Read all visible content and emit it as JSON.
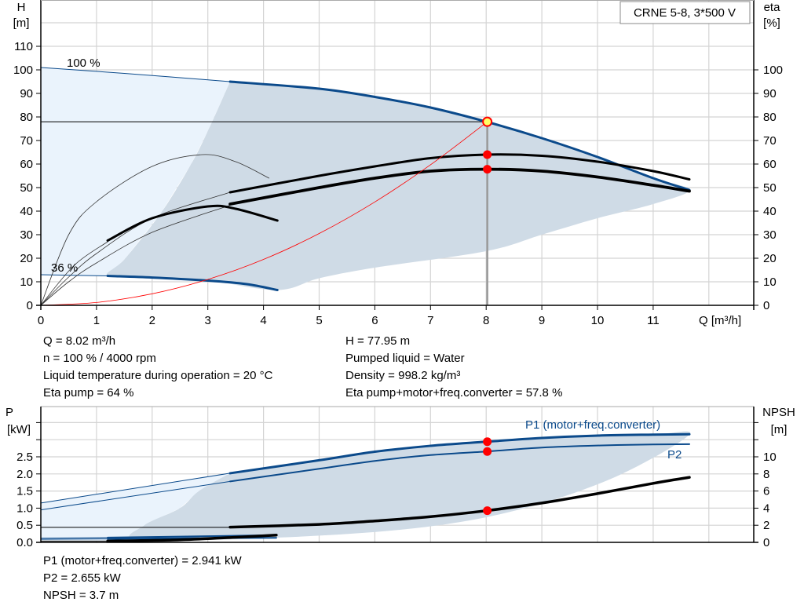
{
  "colors": {
    "curve_blue": "#0b4a8b",
    "range_grey": "#cfdbe6",
    "extended_light": "#eaf3fc",
    "duty_point": "#ff0000",
    "duty_fill": "#ffff66",
    "system_curve": "#ff0000"
  },
  "legend_box": "CRNE 5-8, 3*500 V",
  "info_top": {
    "left": [
      "Q = 8.02 m³/h",
      "n = 100 % / 4000 rpm",
      "Liquid temperature during operation = 20 °C",
      "Eta pump = 64 %"
    ],
    "right": [
      "H = 77.95 m",
      "Pumped liquid = Water",
      "Density = 998.2 kg/m³",
      "Eta pump+motor+freq.converter = 57.8 %"
    ]
  },
  "info_bottom": [
    "P1 (motor+freq.converter) = 2.941 kW",
    "P2 = 2.655 kW",
    "NPSH = 3.7 m"
  ],
  "chart_data": [
    {
      "type": "line",
      "xlabel": "Q [m³/h]",
      "ylabel": [
        "H",
        "[m]"
      ],
      "y2label": [
        "eta",
        "[%]"
      ],
      "xlim": [
        0,
        12.8
      ],
      "ylim": [
        0,
        129.7
      ],
      "y2lim": [
        0,
        129.7
      ],
      "xticks": [
        "0",
        "1",
        "2",
        "3",
        "4",
        "5",
        "6",
        "7",
        "8",
        "9",
        "10",
        "11"
      ],
      "yticks": [
        "0",
        "10",
        "20",
        "30",
        "40",
        "50",
        "60",
        "70",
        "80",
        "90",
        "100",
        "110"
      ],
      "y2ticks": [
        "0",
        "10",
        "20",
        "30",
        "40",
        "50",
        "60",
        "70",
        "80",
        "90",
        "100"
      ],
      "grid": true,
      "speed_labels": [
        {
          "text": "100 %",
          "q": 0.5,
          "h": 101
        },
        {
          "text": "36 %",
          "q": 0.2,
          "h": 14
        }
      ],
      "operating_range_region": [
        [
          3.4,
          95
        ],
        [
          5,
          92
        ],
        [
          6,
          88.5
        ],
        [
          7,
          84
        ],
        [
          8,
          78
        ],
        [
          9,
          71
        ],
        [
          10,
          63
        ],
        [
          11,
          54
        ],
        [
          11.65,
          49
        ],
        [
          11,
          43
        ],
        [
          10,
          37
        ],
        [
          9,
          30
        ],
        [
          8,
          23
        ],
        [
          6,
          16
        ],
        [
          5,
          11.5
        ],
        [
          4.25,
          6.5
        ],
        [
          3,
          10.5
        ],
        [
          2,
          11.8
        ],
        [
          1.2,
          12.5
        ],
        [
          1.52,
          20
        ],
        [
          2.18,
          40
        ],
        [
          2.7,
          60
        ],
        [
          3,
          74
        ],
        [
          3.4,
          95
        ]
      ],
      "extended_region": [
        [
          0,
          101
        ],
        [
          3.4,
          95
        ],
        [
          3,
          74
        ],
        [
          2.7,
          60
        ],
        [
          2.18,
          40
        ],
        [
          1.52,
          20
        ],
        [
          1.2,
          12.5
        ],
        [
          0,
          13
        ]
      ],
      "series": [
        {
          "axis": "H",
          "label": "100 %",
          "segments": [
            {
              "part": "extended",
              "points": [
                [
                  0,
                  101
                ],
                [
                  1.5,
                  98.5
                ],
                [
                  3.4,
                  95
                ]
              ]
            },
            {
              "part": "operating",
              "points": [
                [
                  3.4,
                  95
                ],
                [
                  5,
                  92
                ],
                [
                  6,
                  88.5
                ],
                [
                  7,
                  84
                ],
                [
                  8,
                  78
                ],
                [
                  9,
                  71
                ],
                [
                  10,
                  63
                ],
                [
                  11,
                  54
                ],
                [
                  11.65,
                  49
                ]
              ]
            }
          ]
        },
        {
          "axis": "H",
          "label": "36 %",
          "segments": [
            {
              "part": "extended",
              "points": [
                [
                  0,
                  13
                ],
                [
                  1.2,
                  12.5
                ]
              ]
            },
            {
              "part": "operating",
              "points": [
                [
                  1.2,
                  12.5
                ],
                [
                  2,
                  11.8
                ],
                [
                  3,
                  10.5
                ],
                [
                  3.7,
                  9
                ],
                [
                  4.25,
                  6.5
                ]
              ]
            }
          ]
        },
        {
          "axis": "eta",
          "segments": [
            {
              "part": "extended",
              "points": [
                [
                  0,
                  0
                ],
                [
                  0.5,
                  12
                ],
                [
                  1,
                  22
                ],
                [
                  2,
                  37
                ],
                [
                  3.4,
                  48
                ]
              ]
            },
            {
              "part": "operating",
              "points": [
                [
                  3.4,
                  48
                ],
                [
                  5,
                  55
                ],
                [
                  6,
                  59
                ],
                [
                  7,
                  62.5
                ],
                [
                  8,
                  64
                ],
                [
                  9,
                  63.5
                ],
                [
                  10,
                  61
                ],
                [
                  11,
                  57
                ],
                [
                  11.65,
                  53.5
                ]
              ]
            }
          ]
        },
        {
          "axis": "eta",
          "segments": [
            {
              "part": "extended",
              "points": [
                [
                  0,
                  0
                ],
                [
                  0.5,
                  10
                ],
                [
                  1,
                  18
                ],
                [
                  2,
                  31
                ],
                [
                  3.4,
                  42.5
                ]
              ]
            },
            {
              "part": "operating-bold",
              "points": [
                [
                  3.4,
                  43
                ],
                [
                  5,
                  50
                ],
                [
                  6,
                  54
                ],
                [
                  7,
                  57
                ],
                [
                  8,
                  57.8
                ],
                [
                  9,
                  57
                ],
                [
                  10,
                  54.5
                ],
                [
                  11,
                  51
                ],
                [
                  11.65,
                  48.5
                ]
              ]
            }
          ]
        },
        {
          "axis": "eta",
          "segments": [
            {
              "part": "extended",
              "points": [
                [
                  0,
                  0
                ],
                [
                  0.5,
                  30
                ],
                [
                  1,
                  44
                ],
                [
                  2,
                  59
                ],
                [
                  2.9,
                  64
                ],
                [
                  3.5,
                  61
                ],
                [
                  4.1,
                  54
                ]
              ]
            }
          ]
        },
        {
          "axis": "eta",
          "segments": [
            {
              "part": "extended",
              "points": [
                [
                  0,
                  0
                ],
                [
                  0.6,
                  17
                ],
                [
                  1.2,
                  27
                ]
              ]
            },
            {
              "part": "operating",
              "points": [
                [
                  1.2,
                  27.5
                ],
                [
                  2,
                  37
                ],
                [
                  3,
                  42
                ],
                [
                  3.5,
                  41
                ],
                [
                  4.25,
                  36
                ]
              ]
            }
          ]
        },
        {
          "axis": "H",
          "label": "system",
          "segments": [
            {
              "part": "system",
              "points": [
                [
                  0,
                  0
                ],
                [
                  1,
                  1.2
                ],
                [
                  2,
                  4.9
                ],
                [
                  3,
                  11
                ],
                [
                  4,
                  19.5
                ],
                [
                  5,
                  30.5
                ],
                [
                  6,
                  43.9
                ],
                [
                  7,
                  59.7
                ],
                [
                  8.02,
                  77.95
                ]
              ]
            }
          ]
        }
      ],
      "duty_point": {
        "q": 8.02,
        "h": 77.95,
        "eta_pump": 64,
        "eta_total": 57.8
      }
    },
    {
      "type": "line",
      "ylabel": [
        "P",
        "[kW]"
      ],
      "y2label": [
        "NPSH",
        "[m]"
      ],
      "xlim": [
        0,
        12.8
      ],
      "ylim": [
        0,
        3.96
      ],
      "y2lim": [
        0,
        15.9
      ],
      "yticks": [
        "0.0",
        "0.5",
        "1.0",
        "1.5",
        "2.0",
        "2.5"
      ],
      "y2ticks": [
        "0",
        "2",
        "4",
        "6",
        "8",
        "10"
      ],
      "grid": true,
      "operating_range_region": [
        [
          3.4,
          2.02
        ],
        [
          5,
          2.4
        ],
        [
          6,
          2.65
        ],
        [
          7,
          2.82
        ],
        [
          8,
          2.94
        ],
        [
          9,
          3.05
        ],
        [
          10,
          3.12
        ],
        [
          11,
          3.15
        ],
        [
          11.65,
          3.15
        ],
        [
          10.3,
          1.9
        ],
        [
          8.55,
          0.94
        ],
        [
          6.7,
          0.41
        ],
        [
          4.27,
          0.14
        ],
        [
          1.77,
          0.08
        ],
        [
          1.86,
          0.5
        ],
        [
          2.5,
          1.0
        ],
        [
          2.84,
          1.5
        ],
        [
          3.4,
          2.02
        ]
      ],
      "extended_region": [
        [
          0,
          1.15
        ],
        [
          3.4,
          2.02
        ],
        [
          2.84,
          1.5
        ],
        [
          2.5,
          1.0
        ],
        [
          1.86,
          0.5
        ],
        [
          1.77,
          0.08
        ],
        [
          1.2,
          0.04
        ],
        [
          0,
          0.04
        ]
      ],
      "series": [
        {
          "axis": "P",
          "label": "P1 (motor+freq.converter)",
          "segments": [
            {
              "part": "extended",
              "points": [
                [
                  0,
                  1.15
                ],
                [
                  3.4,
                  2.02
                ]
              ]
            },
            {
              "part": "operating",
              "points": [
                [
                  3.4,
                  2.02
                ],
                [
                  5,
                  2.4
                ],
                [
                  6,
                  2.65
                ],
                [
                  7,
                  2.82
                ],
                [
                  8,
                  2.94
                ],
                [
                  9,
                  3.05
                ],
                [
                  10,
                  3.12
                ],
                [
                  11,
                  3.15
                ],
                [
                  11.65,
                  3.16
                ]
              ]
            }
          ]
        },
        {
          "axis": "P",
          "label": "P2",
          "segments": [
            {
              "part": "extended",
              "points": [
                [
                  0,
                  0.95
                ],
                [
                  3.4,
                  1.78
                ]
              ]
            },
            {
              "part": "operating-thin",
              "points": [
                [
                  3.4,
                  1.78
                ],
                [
                  5,
                  2.15
                ],
                [
                  6,
                  2.38
                ],
                [
                  7,
                  2.55
                ],
                [
                  8,
                  2.655
                ],
                [
                  9,
                  2.77
                ],
                [
                  10,
                  2.83
                ],
                [
                  11,
                  2.86
                ],
                [
                  11.65,
                  2.87
                ]
              ]
            }
          ]
        },
        {
          "axis": "NPSH",
          "segments": [
            {
              "part": "extended-black",
              "points": [
                [
                  0,
                  1.75
                ],
                [
                  3.4,
                  1.75
                ]
              ]
            },
            {
              "part": "operating-black",
              "points": [
                [
                  3.4,
                  1.78
                ],
                [
                  5,
                  2.1
                ],
                [
                  6,
                  2.5
                ],
                [
                  7,
                  3.0
                ],
                [
                  8,
                  3.7
                ],
                [
                  9,
                  4.6
                ],
                [
                  10,
                  5.7
                ],
                [
                  11,
                  6.9
                ],
                [
                  11.65,
                  7.6
                ]
              ]
            }
          ]
        },
        {
          "axis": "P",
          "segments": [
            {
              "part": "extended",
              "points": [
                [
                  0,
                  0.12
                ],
                [
                  1.2,
                  0.14
                ]
              ]
            },
            {
              "part": "operating-thin",
              "points": [
                [
                  1.2,
                  0.14
                ],
                [
                  2.5,
                  0.17
                ],
                [
                  4.23,
                  0.21
                ]
              ]
            }
          ]
        },
        {
          "axis": "P",
          "segments": [
            {
              "part": "extended",
              "points": [
                [
                  0,
                  0.09
                ],
                [
                  1.2,
                  0.1
                ]
              ]
            },
            {
              "part": "operating-thin",
              "points": [
                [
                  1.2,
                  0.1
                ],
                [
                  2.5,
                  0.12
                ],
                [
                  4.23,
                  0.13
                ]
              ]
            }
          ]
        },
        {
          "axis": "NPSH",
          "segments": [
            {
              "part": "extended-black",
              "points": [
                [
                  0,
                  0.15
                ],
                [
                  1.2,
                  0.15
                ]
              ]
            },
            {
              "part": "operating-black",
              "points": [
                [
                  1.2,
                  0.15
                ],
                [
                  2.5,
                  0.3
                ],
                [
                  3.5,
                  0.6
                ],
                [
                  4.23,
                  0.85
                ]
              ]
            }
          ]
        }
      ],
      "duty_point": {
        "q": 8.02,
        "p1": 2.941,
        "p2": 2.655,
        "npsh": 3.7
      }
    }
  ]
}
